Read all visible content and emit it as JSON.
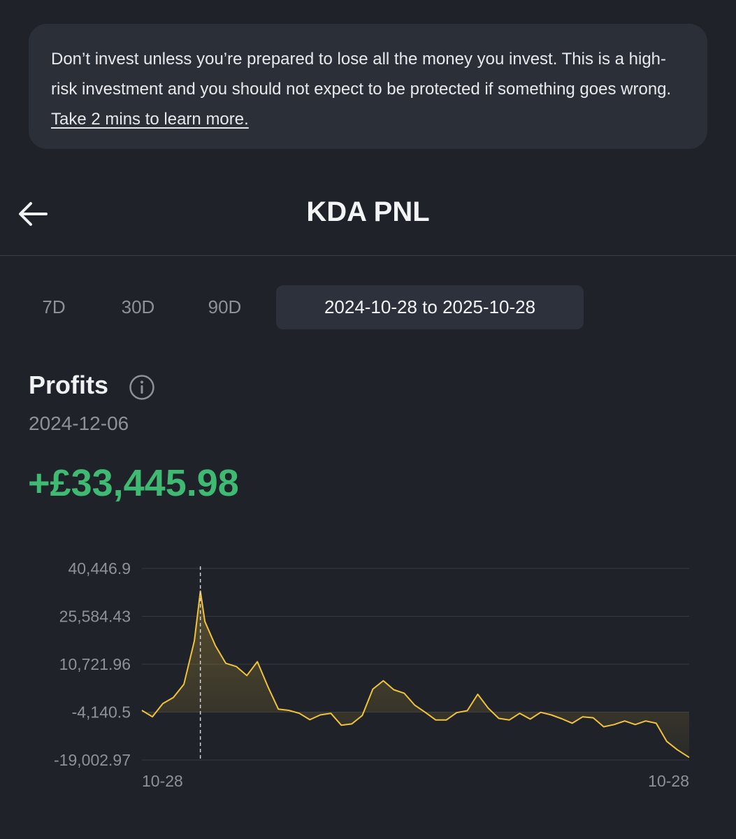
{
  "warning": {
    "text": "Don’t invest unless you’re prepared to lose all the money you invest. This is a high-risk investment and you should not expect to be protected if something goes wrong.",
    "link_text": "Take 2 mins to learn more."
  },
  "header": {
    "title": "KDA PNL",
    "back_icon": "arrow-left-icon"
  },
  "tabs": [
    {
      "label": "7D",
      "active": false
    },
    {
      "label": "30D",
      "active": false
    },
    {
      "label": "90D",
      "active": false
    },
    {
      "label": "2024-10-28 to 2025-10-28",
      "active": true
    }
  ],
  "profits": {
    "label": "Profits",
    "info_icon": "info-icon",
    "date": "2024-12-06",
    "value": "+£33,445.98"
  },
  "colors": {
    "background": "#1f2228",
    "line": "#f0c33c",
    "positive": "#3fba73"
  },
  "chart_data": {
    "type": "line",
    "y_ticks": [
      "40,446.9",
      "25,584.43",
      "10,721.96",
      "-4,140.5",
      "-19,002.97"
    ],
    "ylim": [
      -19002.97,
      40446.9
    ],
    "x_tick_labels": [
      "10-28",
      "10-28"
    ],
    "x": [
      "2024-10-28",
      "2024-11-04",
      "2024-11-11",
      "2024-11-18",
      "2024-11-25",
      "2024-12-02",
      "2024-12-06",
      "2024-12-09",
      "2024-12-16",
      "2024-12-23",
      "2024-12-30",
      "2025-01-06",
      "2025-01-13",
      "2025-01-20",
      "2025-01-27",
      "2025-02-03",
      "2025-02-10",
      "2025-02-17",
      "2025-02-24",
      "2025-03-03",
      "2025-03-10",
      "2025-03-17",
      "2025-03-24",
      "2025-03-31",
      "2025-04-07",
      "2025-04-14",
      "2025-04-21",
      "2025-04-28",
      "2025-05-05",
      "2025-05-12",
      "2025-05-19",
      "2025-05-26",
      "2025-06-02",
      "2025-06-09",
      "2025-06-16",
      "2025-06-23",
      "2025-06-30",
      "2025-07-07",
      "2025-07-14",
      "2025-07-21",
      "2025-07-28",
      "2025-08-04",
      "2025-08-11",
      "2025-08-18",
      "2025-08-25",
      "2025-09-01",
      "2025-09-08",
      "2025-09-15",
      "2025-09-22",
      "2025-09-29",
      "2025-10-06",
      "2025-10-13",
      "2025-10-20",
      "2025-10-28"
    ],
    "series": [
      {
        "values": [
          -3600,
          -5600,
          -1500,
          400,
          4500,
          18000,
          33400,
          24000,
          16500,
          11000,
          10000,
          7200,
          11500,
          3800,
          -3200,
          -3600,
          -4500,
          -6500,
          -5000,
          -4500,
          -8200,
          -7800,
          -5200,
          3000,
          5600,
          2800,
          1700,
          -2000,
          -4200,
          -6600,
          -6600,
          -4300,
          -3700,
          1400,
          -2900,
          -6100,
          -6600,
          -4500,
          -6300,
          -4200,
          -5000,
          -6200,
          -7600,
          -5600,
          -5900,
          -8700,
          -8000,
          -6900,
          -8000,
          -6900,
          -7600,
          -13200,
          -15800,
          -18200
        ]
      }
    ],
    "highlight": {
      "x": "2024-12-06",
      "y": 33445.98
    },
    "grid": true
  }
}
